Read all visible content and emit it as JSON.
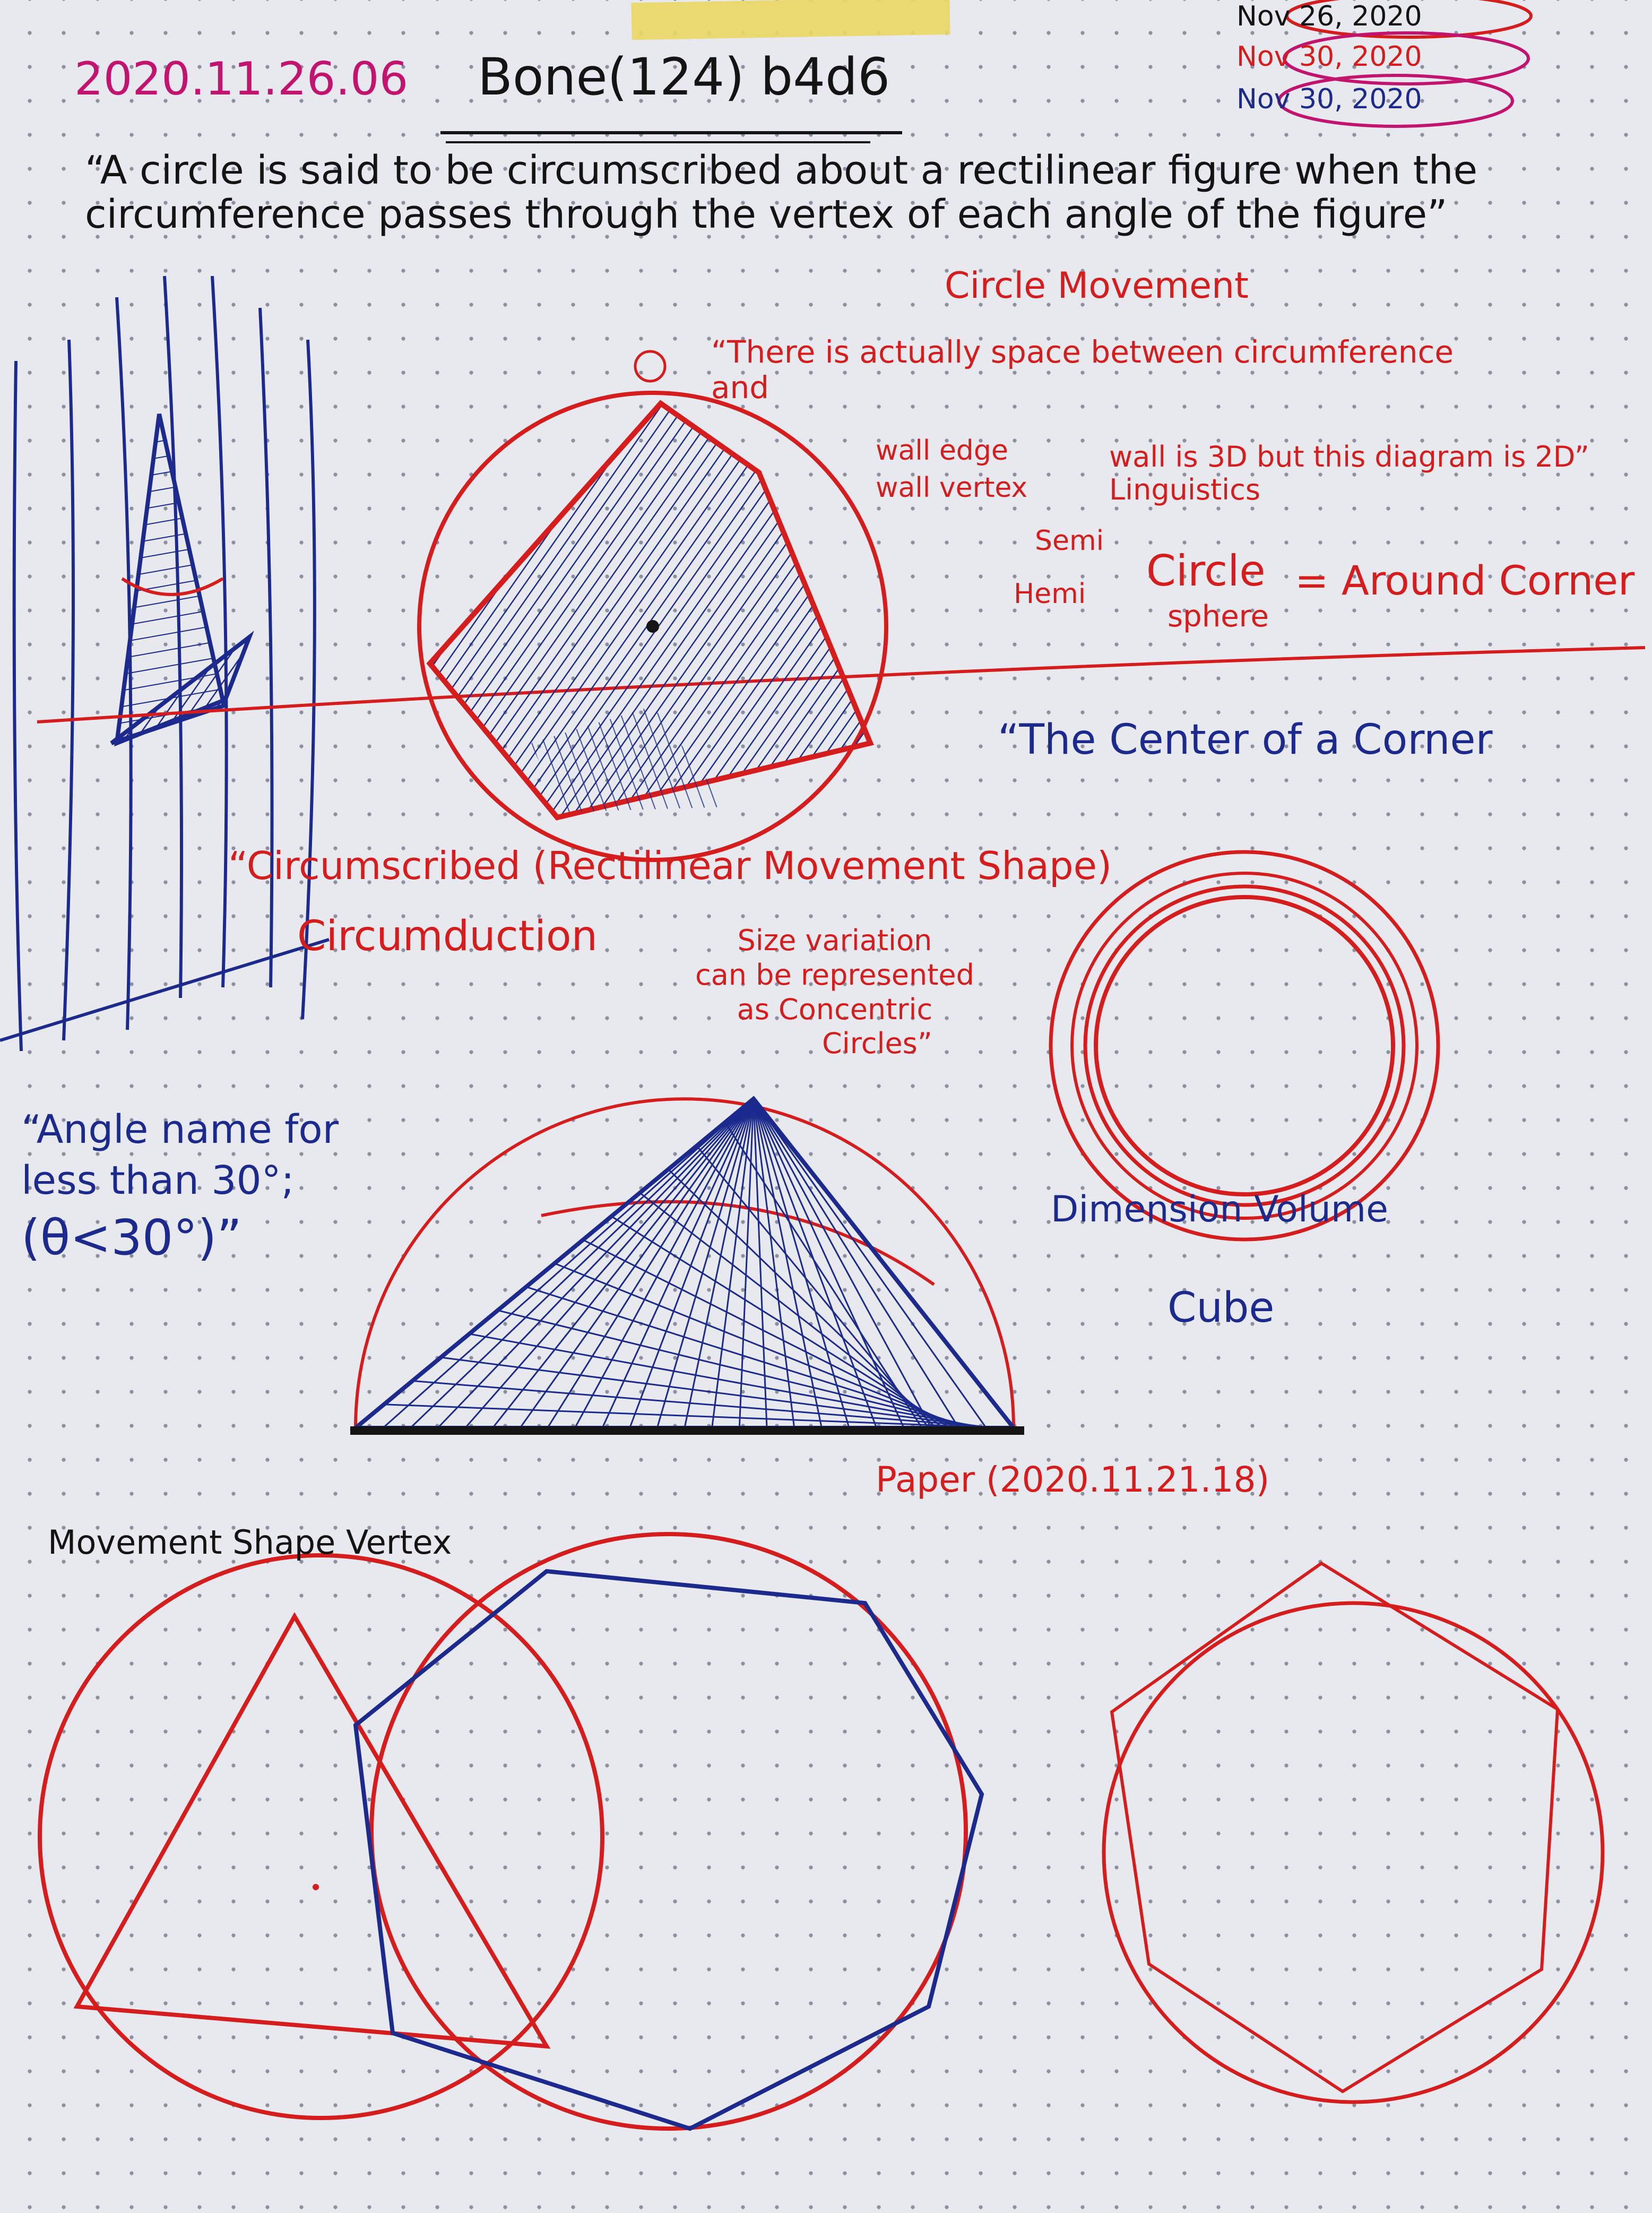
{
  "header": {
    "date": "2020.11.26.06",
    "title": "Bone(124) b4d6",
    "stamps": [
      "Nov 26, 2020",
      "Nov 30, 2020",
      "Nov 30, 2020"
    ]
  },
  "quote_definition": "“A circle is said to be circumscribed about a rectilinear figure when the circumference passes through the vertex of each angle of the figure”",
  "notes": {
    "circle_movement": "Circle Movement",
    "space_quote": "“There is actually space between circumference and",
    "wall_edge": "wall edge",
    "wall_vertex": "wall vertex",
    "wall_3d": "wall is 3D but this diagram is 2D” Linguistics",
    "semi": "Semi",
    "hemi": "Hemi",
    "circle": "Circle",
    "sphere": "sphere",
    "around_corner": "= Around Corner",
    "center_of_corner": "“The Center of a Corner",
    "circumscribed_rectilinear": "“Circumscribed (Rectilinear Movement Shape)",
    "circumduction": "Circumduction",
    "size_variation": [
      "Size variation",
      "can be represented",
      "as Concentric",
      "Circles”"
    ],
    "angle_name": [
      "“Angle name for",
      "less than 30°;",
      "(θ<30°)”"
    ],
    "dimension_volume": "Dimension Volume",
    "cube": "Cube",
    "paper": "Paper (2020.11.21.18)",
    "movement_shape_vertex": "Movement Shape Vertex"
  },
  "colors": {
    "paper": "#e7e9ef",
    "red_ink": "#d51d1d",
    "blue_ink": "#1b2a8c",
    "black_ink": "#141414",
    "magenta_ink": "#c2136e",
    "tape": "#e9d765"
  }
}
